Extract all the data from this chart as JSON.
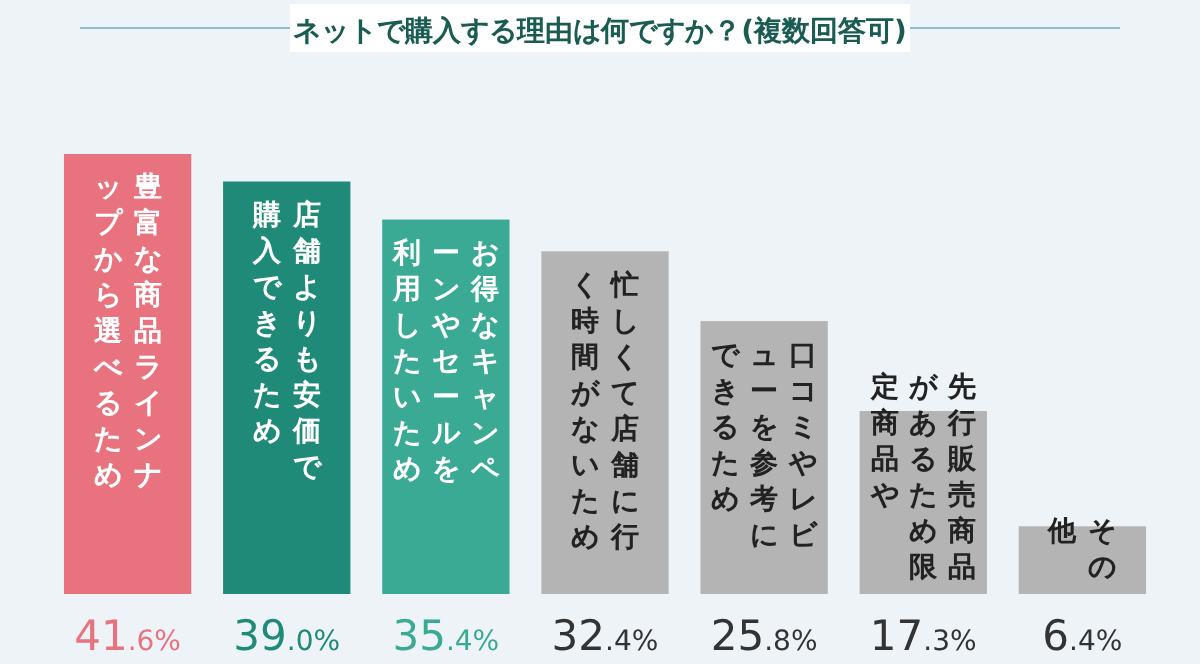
{
  "chart_data": {
    "type": "bar",
    "title": "ネットで購入する理由は何ですか？(複数回答可)",
    "categories": [
      "豊富な商品ラインナップから選べるため",
      "店舗よりも安価で購入できるため",
      "お得なキャンペーンやセールを利用したいため",
      "忙しくて店舗に行く時間がないため",
      "口コミやレビューを参考にできるため",
      "先行販売商品があるため限定商品や",
      "その他"
    ],
    "values": [
      41.6,
      39.0,
      35.4,
      32.4,
      25.8,
      17.3,
      6.4
    ],
    "value_labels": [
      "41.6%",
      "39.0%",
      "35.4%",
      "32.4%",
      "25.8%",
      "17.3%",
      "6.4%"
    ],
    "colors": [
      "#e8737f",
      "#1f8a78",
      "#3aaa94",
      "#b4b4b4",
      "#b4b4b4",
      "#b4b4b4",
      "#b4b4b4"
    ],
    "data_labels": true
  }
}
